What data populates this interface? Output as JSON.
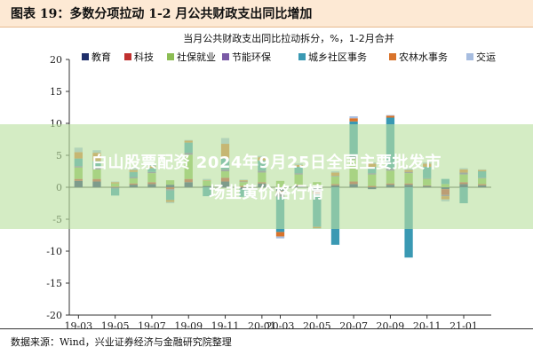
{
  "figure": {
    "title": "图表 19：多数分项拉动 1-2 月公共财政支出同比增加",
    "source": "数据来源：Wind，兴业证券经济与金融研究院整理"
  },
  "watermark": {
    "line1": "白山股票配资 2024年9月25日全国主要批发市",
    "line2": "场韭黄价格行情"
  },
  "chart_data": {
    "type": "bar",
    "stacked": true,
    "title": "当月公共财政支出同比拉动拆分，%，1-2月合并",
    "ylim": [
      -20,
      20
    ],
    "yticks": [
      -20,
      -15,
      -10,
      -5,
      0,
      5,
      10,
      15,
      20
    ],
    "xtick_labels": [
      "19-03",
      "19-05",
      "19-07",
      "19-09",
      "19-11",
      "20-01",
      "20-03",
      "20-05",
      "20-07",
      "20-09",
      "20-11",
      "21-01"
    ],
    "categories": [
      "19-03",
      "19-04",
      "19-05",
      "19-06",
      "19-07",
      "19-08",
      "19-09",
      "19-10",
      "19-11",
      "19-12",
      "20-01",
      "20-03",
      "20-04",
      "20-05",
      "20-06",
      "20-07",
      "20-08",
      "20-09",
      "20-10",
      "20-11",
      "20-12",
      "21-01",
      "21-02"
    ],
    "legend_position": "top",
    "series": [
      {
        "name": "教育",
        "color": "#1f2f6b",
        "values": [
          1.0,
          0.9,
          -0.1,
          0.4,
          0.5,
          0.4,
          0.8,
          0.2,
          0.9,
          -0.3,
          0.6,
          -0.6,
          0.2,
          -0.7,
          0.3,
          0.5,
          -0.3,
          0.4,
          0.4,
          0.2,
          -0.3,
          0.5,
          0.3
        ]
      },
      {
        "name": "科技",
        "color": "#c0302f",
        "values": [
          0.3,
          0.4,
          0.1,
          0.2,
          0.3,
          -0.3,
          0.5,
          0.0,
          0.6,
          0.2,
          0.2,
          -0.4,
          0.2,
          -0.3,
          0.2,
          0.4,
          0.2,
          0.2,
          0.2,
          0.1,
          -0.9,
          0.3,
          0.2
        ]
      },
      {
        "name": "社保就业",
        "color": "#8cbd54",
        "values": [
          1.8,
          1.5,
          0.5,
          0.8,
          1.4,
          0.7,
          3.8,
          0.8,
          1.0,
          0.6,
          1.5,
          1.0,
          1.6,
          0.8,
          1.2,
          3.5,
          1.8,
          2.0,
          1.6,
          1.0,
          0.5,
          1.2,
          0.9
        ]
      },
      {
        "name": "节能环保",
        "color": "#7a5aa6",
        "values": [
          0.2,
          0.3,
          -0.1,
          0.2,
          0.2,
          -0.2,
          0.3,
          0.0,
          0.3,
          0.1,
          0.3,
          -0.5,
          0.2,
          -0.2,
          0.1,
          0.4,
          0.2,
          0.3,
          0.2,
          0.1,
          -0.2,
          0.3,
          0.1
        ]
      },
      {
        "name": "城乡社区事务",
        "color": "#3a99b3",
        "values": [
          1.2,
          1.0,
          -1.1,
          0.8,
          0.6,
          -1.5,
          1.6,
          -1.4,
          1.7,
          -1.2,
          1.6,
          -5.5,
          1.0,
          -5.0,
          -9.0,
          5.5,
          1.0,
          8.0,
          -11.0,
          1.8,
          0.8,
          -2.5,
          1.0
        ]
      },
      {
        "name": "农林水事务",
        "color": "#d9732b",
        "values": [
          1.0,
          1.3,
          0.2,
          0.3,
          0.3,
          -0.3,
          0.3,
          0.1,
          2.3,
          0.2,
          0.5,
          -0.7,
          0.3,
          -0.2,
          0.5,
          0.5,
          0.5,
          0.3,
          0.3,
          0.5,
          -0.5,
          0.5,
          0.2
        ]
      },
      {
        "name": "交运",
        "color": "#a7bde0",
        "values": [
          0.7,
          0.4,
          0.1,
          0.3,
          0.2,
          -0.2,
          0.1,
          0.2,
          0.9,
          0.1,
          0.2,
          -0.3,
          0.2,
          -0.1,
          0.2,
          0.3,
          0.2,
          0.1,
          0.2,
          0.2,
          -0.3,
          0.2,
          0.1
        ]
      }
    ]
  }
}
